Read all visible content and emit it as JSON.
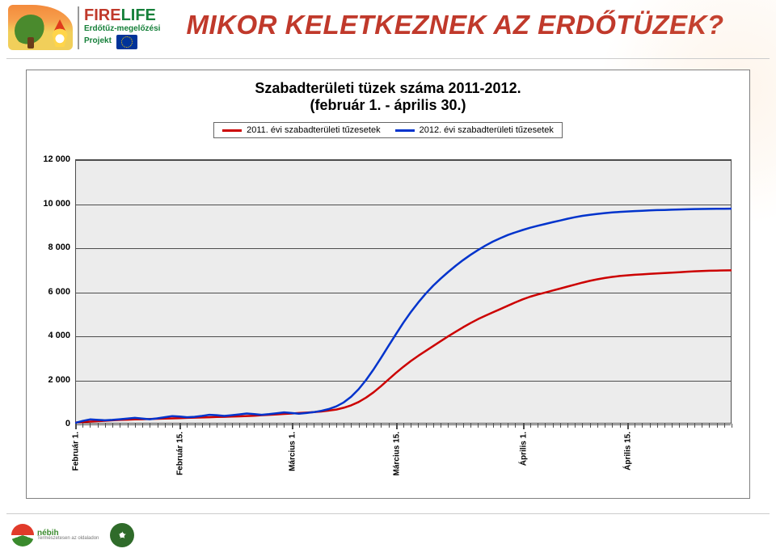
{
  "logos": {
    "firelife_word_fire": "FIRE",
    "firelife_word_life": "LIFE",
    "firelife_sub1": "Erdőtűz-megelőzési",
    "firelife_sub2": "Projekt"
  },
  "title": "MIKOR KELETKEZNEK AZ ERDŐTÜZEK?",
  "footer": {
    "nebih_name": "nébih",
    "nebih_tagline": "Természetesen az oldaladon"
  },
  "chart": {
    "type": "line",
    "title_line1": "Szabadterületi tüzek száma 2011-2012.",
    "title_line2": "(február 1. - április 30.)",
    "title_fontsize": 18,
    "background_color": "#ececec",
    "grid_color": "#4d4d4d",
    "card_border_color": "#808080",
    "line_width": 2.5,
    "ylim": [
      0,
      12000
    ],
    "ytick_step": 2000,
    "yticks": [
      "0",
      "2 000",
      "4 000",
      "6 000",
      "8 000",
      "10 000",
      "12 000"
    ],
    "ytick_fontsize": 11,
    "n_days": 89,
    "x_major_indices": [
      0,
      14,
      29,
      43,
      60,
      74
    ],
    "x_major_labels": [
      "Február 1.",
      "Február 15.",
      "Március 1.",
      "Március 15.",
      "Április 1.",
      "Április 15."
    ],
    "xlabel_fontsize": 10,
    "legend": {
      "border_color": "#666666",
      "items": [
        {
          "label": "2011. évi szabadterületi tűzesetek",
          "color": "#cc0000"
        },
        {
          "label": "2012. évi szabadterületi tűzesetek",
          "color": "#0033cc"
        }
      ]
    },
    "series": [
      {
        "name": "2011",
        "color": "#cc0000",
        "values": [
          50,
          70,
          90,
          110,
          130,
          150,
          170,
          180,
          190,
          200,
          210,
          220,
          230,
          240,
          250,
          260,
          270,
          280,
          290,
          300,
          310,
          320,
          330,
          345,
          360,
          380,
          400,
          420,
          440,
          460,
          480,
          500,
          520,
          550,
          590,
          640,
          720,
          830,
          980,
          1180,
          1420,
          1700,
          2000,
          2300,
          2580,
          2840,
          3080,
          3300,
          3520,
          3740,
          3960,
          4170,
          4370,
          4560,
          4740,
          4900,
          5050,
          5200,
          5350,
          5500,
          5640,
          5760,
          5860,
          5950,
          6040,
          6130,
          6220,
          6310,
          6400,
          6480,
          6550,
          6610,
          6660,
          6700,
          6730,
          6755,
          6775,
          6795,
          6815,
          6835,
          6855,
          6875,
          6895,
          6915,
          6930,
          6940,
          6948,
          6953,
          6956
        ]
      },
      {
        "name": "2012",
        "color": "#0033cc",
        "values": [
          30,
          120,
          190,
          170,
          150,
          170,
          200,
          230,
          260,
          230,
          200,
          240,
          290,
          340,
          320,
          290,
          310,
          350,
          400,
          380,
          350,
          380,
          420,
          460,
          430,
          400,
          430,
          470,
          510,
          480,
          450,
          480,
          520,
          580,
          660,
          780,
          960,
          1220,
          1560,
          1980,
          2460,
          2980,
          3520,
          4060,
          4580,
          5060,
          5500,
          5900,
          6260,
          6580,
          6880,
          7160,
          7420,
          7660,
          7880,
          8080,
          8260,
          8420,
          8560,
          8680,
          8790,
          8890,
          8980,
          9060,
          9140,
          9220,
          9300,
          9370,
          9430,
          9480,
          9520,
          9555,
          9585,
          9610,
          9630,
          9648,
          9664,
          9678,
          9690,
          9700,
          9710,
          9720,
          9730,
          9738,
          9744,
          9748,
          9752,
          9755,
          9757
        ]
      }
    ]
  }
}
